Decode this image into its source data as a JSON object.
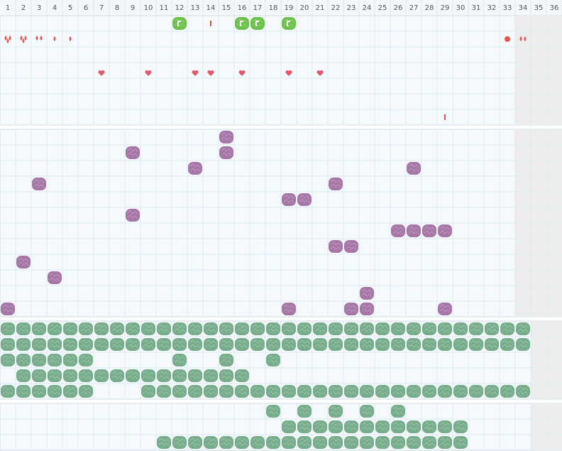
{
  "header": {
    "columns": [
      "1",
      "2",
      "3",
      "4",
      "5",
      "6",
      "7",
      "8",
      "9",
      "10",
      "11",
      "12",
      "13",
      "14",
      "15",
      "16",
      "17",
      "18",
      "19",
      "20",
      "21",
      "22",
      "23",
      "24",
      "25",
      "26",
      "27",
      "28",
      "29",
      "30",
      "31",
      "32",
      "33",
      "34",
      "35",
      "36"
    ]
  }
}
